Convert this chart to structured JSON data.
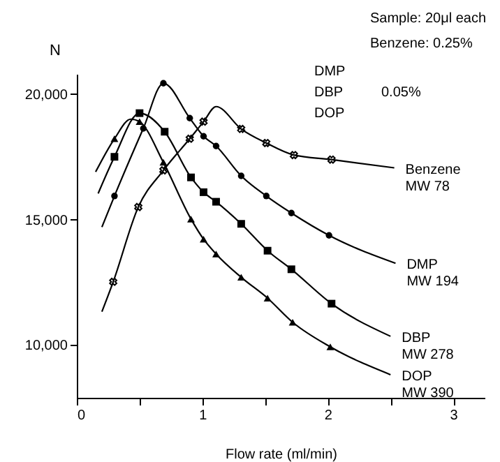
{
  "chart_data": {
    "type": "line",
    "xlabel": "Flow rate (ml/min)",
    "ylabel": "N",
    "xlim": [
      0,
      3.25
    ],
    "ylim": [
      7900,
      20800
    ],
    "xticks": [
      0,
      {
        "value": 0.5,
        "label": null
      },
      1,
      {
        "value": 1.5,
        "label": null
      },
      2,
      {
        "value": 2.5,
        "label": null
      },
      3
    ],
    "yticks": [
      {
        "value": 10000,
        "label": "10,000"
      },
      {
        "value": 15000,
        "label": "15,000"
      },
      {
        "value": 20000,
        "label": "20,000"
      }
    ],
    "grid": false,
    "legend": false,
    "line_style": "solid",
    "annotations": [
      "Sample: 20μl each",
      "Benzene: 0.25%",
      "DMP",
      "DBP",
      "DOP",
      "0.05%"
    ],
    "series": [
      {
        "name": "Benzene\nMW 78",
        "color": "#000000",
        "marker": "none",
        "x": [
          0.2,
          0.29,
          0.49,
          0.69,
          0.9,
          1.01,
          1.11,
          1.31,
          1.51,
          1.73,
          2.03,
          2.53
        ],
        "values": [
          11330,
          12520,
          15500,
          16960,
          18220,
          18900,
          19500,
          18610,
          18050,
          17570,
          17390,
          17060
        ]
      },
      {
        "type": "scatter",
        "color": "#000000",
        "marker": "cross",
        "x": [
          0.29,
          0.49,
          0.69,
          0.9,
          1.01,
          1.31,
          1.51,
          1.73,
          2.03
        ],
        "values": [
          12520,
          15500,
          16960,
          18220,
          18900,
          18610,
          18050,
          17570,
          17390
        ]
      },
      {
        "name": "DMP\nMW 194",
        "color": "#000000",
        "marker": "none",
        "x": [
          0.2,
          0.3,
          0.53,
          0.69,
          0.9,
          1.01,
          1.11,
          1.31,
          1.51,
          1.71,
          2.01,
          2.54
        ],
        "values": [
          14700,
          15940,
          18630,
          20430,
          19040,
          18320,
          17930,
          16740,
          15940,
          15260,
          14370,
          13260
        ]
      },
      {
        "type": "scatter",
        "color": "#000000",
        "marker": "circle",
        "x": [
          0.3,
          0.53,
          0.69,
          0.9,
          1.01,
          1.11,
          1.31,
          1.51,
          1.71,
          2.01
        ],
        "values": [
          15940,
          18630,
          20430,
          19040,
          18320,
          17930,
          16740,
          15940,
          15260,
          14370
        ]
      },
      {
        "name": "DBP\nMW 278",
        "color": "#000000",
        "marker": "none",
        "x": [
          0.17,
          0.3,
          0.5,
          0.7,
          0.91,
          1.01,
          1.11,
          1.31,
          1.52,
          1.71,
          2.03,
          2.5
        ],
        "values": [
          16040,
          17500,
          19240,
          18500,
          16680,
          16090,
          15710,
          14830,
          13760,
          13020,
          11650,
          10350
        ]
      },
      {
        "type": "scatter",
        "color": "#000000",
        "marker": "square",
        "x": [
          0.3,
          0.5,
          0.7,
          0.91,
          1.01,
          1.11,
          1.31,
          1.52,
          1.71,
          2.03
        ],
        "values": [
          17500,
          19240,
          18500,
          16680,
          16090,
          15710,
          14830,
          13760,
          13020,
          11650
        ]
      },
      {
        "name": "DOP\nMW 390",
        "color": "#000000",
        "marker": "none",
        "x": [
          0.15,
          0.3,
          0.43,
          0.5,
          0.69,
          0.91,
          1.01,
          1.11,
          1.31,
          1.52,
          1.72,
          2.02,
          2.5
        ],
        "values": [
          16900,
          18220,
          19000,
          18900,
          17280,
          15020,
          14220,
          13630,
          12700,
          11870,
          10910,
          9930,
          8820
        ]
      },
      {
        "type": "scatter",
        "color": "#000000",
        "marker": "triangle",
        "x": [
          0.3,
          0.5,
          0.69,
          0.91,
          1.01,
          1.11,
          1.31,
          1.52,
          1.72,
          2.02
        ],
        "values": [
          18220,
          18900,
          17280,
          15020,
          14220,
          13630,
          12700,
          11870,
          10910,
          9930
        ]
      }
    ]
  }
}
